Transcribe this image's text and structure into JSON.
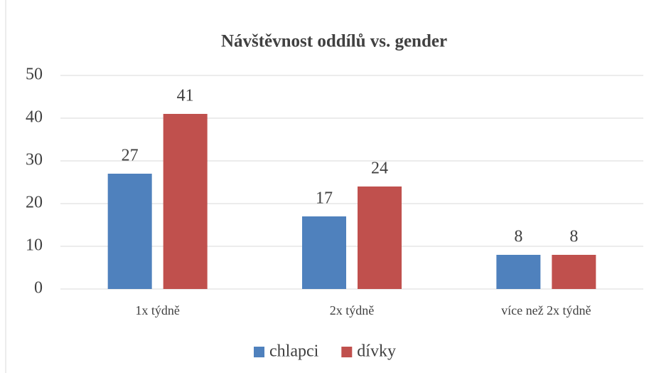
{
  "chart_data": {
    "type": "bar",
    "title": "Návštěvnost oddílů vs. gender",
    "categories": [
      "1x týdně",
      "2x týdně",
      "více než 2x týdně"
    ],
    "series": [
      {
        "name": "chlapci",
        "color": "#4f81bd",
        "values": [
          27,
          17,
          8
        ]
      },
      {
        "name": "dívky",
        "color": "#c0504d",
        "values": [
          41,
          24,
          8
        ]
      }
    ],
    "ylim": [
      0,
      50
    ],
    "yticks": [
      0,
      10,
      20,
      30,
      40,
      50
    ],
    "grid": true,
    "legend": "bottom"
  }
}
